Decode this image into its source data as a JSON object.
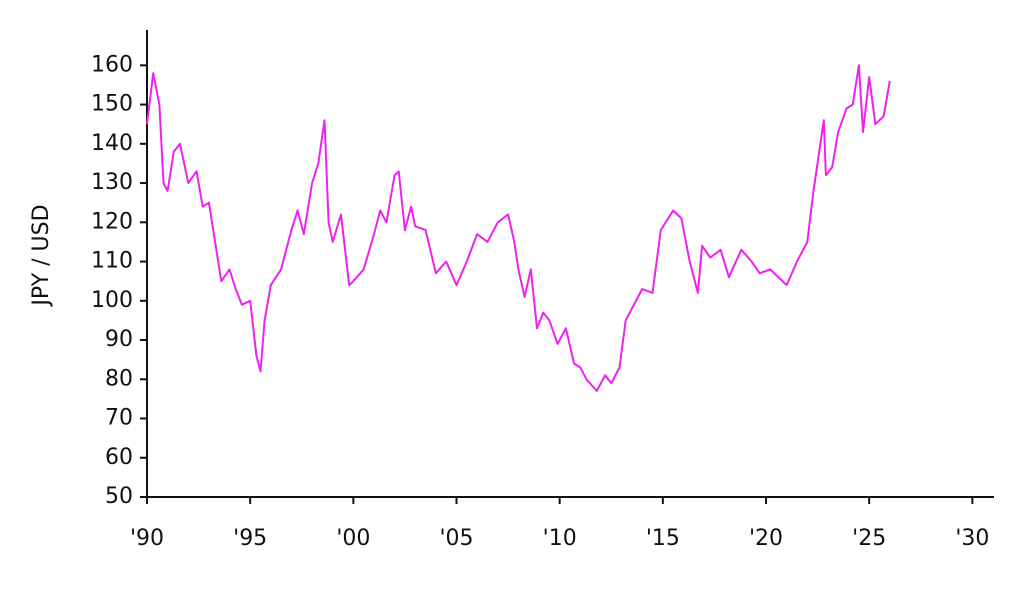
{
  "chart_data": {
    "type": "line",
    "y_label": "JPY / USD",
    "color": "#ee22ee",
    "x": [
      1990.0,
      1990.3,
      1990.6,
      1990.8,
      1991.0,
      1991.3,
      1991.6,
      1992.0,
      1992.4,
      1992.7,
      1993.0,
      1993.3,
      1993.6,
      1994.0,
      1994.3,
      1994.6,
      1995.0,
      1995.3,
      1995.5,
      1995.7,
      1996.0,
      1996.5,
      1997.0,
      1997.3,
      1997.6,
      1998.0,
      1998.3,
      1998.6,
      1998.8,
      1999.0,
      1999.4,
      1999.8,
      2000.0,
      2000.5,
      2001.0,
      2001.3,
      2001.6,
      2002.0,
      2002.2,
      2002.5,
      2002.8,
      2003.0,
      2003.5,
      2004.0,
      2004.5,
      2005.0,
      2005.5,
      2006.0,
      2006.5,
      2007.0,
      2007.5,
      2007.8,
      2008.0,
      2008.3,
      2008.6,
      2008.9,
      2009.2,
      2009.5,
      2009.9,
      2010.3,
      2010.7,
      2011.0,
      2011.3,
      2011.8,
      2012.2,
      2012.5,
      2012.9,
      2013.2,
      2013.5,
      2014.0,
      2014.5,
      2014.9,
      2015.5,
      2015.9,
      2016.3,
      2016.7,
      2016.9,
      2017.3,
      2017.8,
      2018.2,
      2018.8,
      2019.3,
      2019.7,
      2020.2,
      2020.6,
      2021.0,
      2021.5,
      2022.0,
      2022.3,
      2022.8,
      2022.9,
      2023.2,
      2023.5,
      2023.9,
      2024.2,
      2024.5,
      2024.7,
      2025.0,
      2025.3,
      2025.7,
      2026.0
    ],
    "values": [
      145,
      158,
      150,
      130,
      128,
      138,
      140,
      130,
      133,
      124,
      125,
      115,
      105,
      108,
      103,
      99,
      100,
      86,
      82,
      95,
      104,
      108,
      118,
      123,
      117,
      130,
      135,
      146,
      120,
      115,
      122,
      104,
      105,
      108,
      117,
      123,
      120,
      132,
      133,
      118,
      124,
      119,
      118,
      107,
      110,
      104,
      110,
      117,
      115,
      120,
      122,
      115,
      108,
      101,
      108,
      93,
      97,
      95,
      89,
      93,
      84,
      83,
      80,
      77,
      81,
      79,
      83,
      95,
      98,
      103,
      102,
      118,
      123,
      121,
      110,
      102,
      114,
      111,
      113,
      106,
      113,
      110,
      107,
      108,
      106,
      104,
      110,
      115,
      128,
      146,
      132,
      134,
      143,
      149,
      150,
      160,
      143,
      157,
      145,
      147,
      156
    ],
    "xlim": [
      1990,
      2031
    ],
    "ylim": [
      50,
      169
    ],
    "xticks": [
      {
        "value": 1990,
        "label": "'90"
      },
      {
        "value": 1995,
        "label": "'95"
      },
      {
        "value": 2000,
        "label": "'00"
      },
      {
        "value": 2005,
        "label": "'05"
      },
      {
        "value": 2010,
        "label": "'10"
      },
      {
        "value": 2015,
        "label": "'15"
      },
      {
        "value": 2020,
        "label": "'20"
      },
      {
        "value": 2025,
        "label": "'25"
      },
      {
        "value": 2030,
        "label": "'30"
      }
    ],
    "yticks": [
      50,
      60,
      70,
      80,
      90,
      100,
      110,
      120,
      130,
      140,
      150,
      160
    ]
  }
}
